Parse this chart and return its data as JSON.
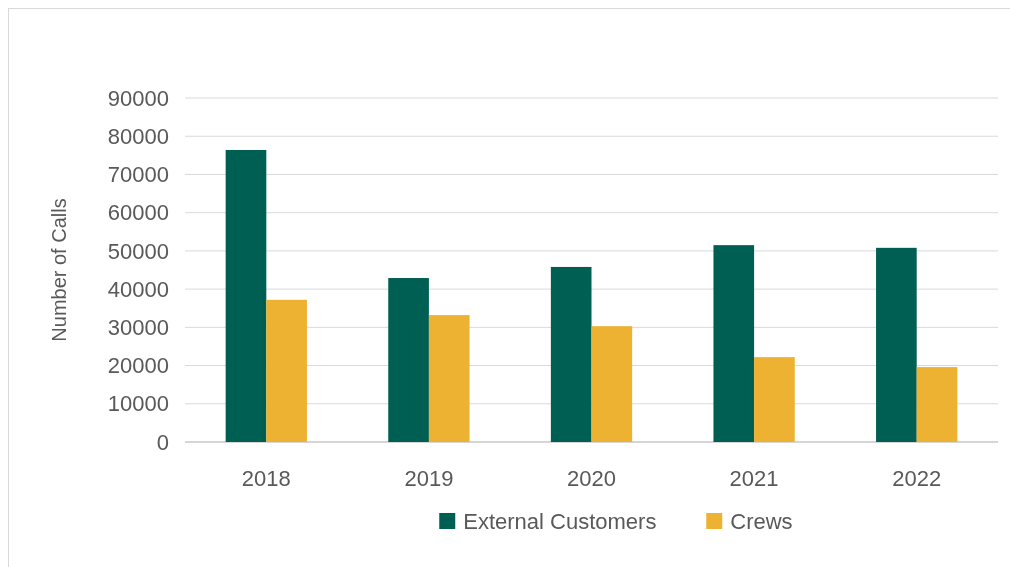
{
  "chart_data": {
    "type": "bar",
    "ylabel": "Number of Calls",
    "categories": [
      "2018",
      "2019",
      "2020",
      "2021",
      "2022"
    ],
    "series": [
      {
        "name": "External Customers",
        "color": "#005f53",
        "values": [
          76400,
          42900,
          45800,
          51500,
          50800
        ]
      },
      {
        "name": "Crews",
        "color": "#edb232",
        "values": [
          37200,
          33200,
          30300,
          22200,
          19600
        ]
      }
    ],
    "ylim": [
      0,
      90000
    ],
    "yticks": [
      0,
      10000,
      20000,
      30000,
      40000,
      50000,
      60000,
      70000,
      80000,
      90000
    ],
    "grid": "y",
    "legend": "bottom"
  }
}
